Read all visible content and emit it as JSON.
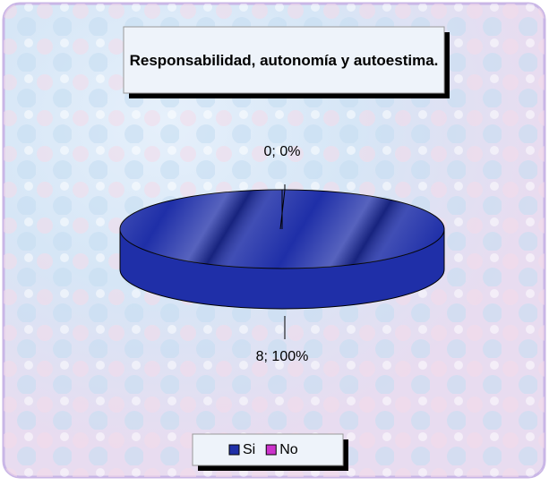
{
  "chart_data": {
    "type": "pie",
    "title": "Responsabilidad, autonomía y autoestima.",
    "categories": [
      "Si",
      "No"
    ],
    "values": [
      8,
      0
    ],
    "value_labels": [
      "8; 100%",
      "0; 0%"
    ],
    "colors": [
      "#1f2fa8",
      "#cc33cc"
    ],
    "three_d": true,
    "legend": "bottom"
  }
}
